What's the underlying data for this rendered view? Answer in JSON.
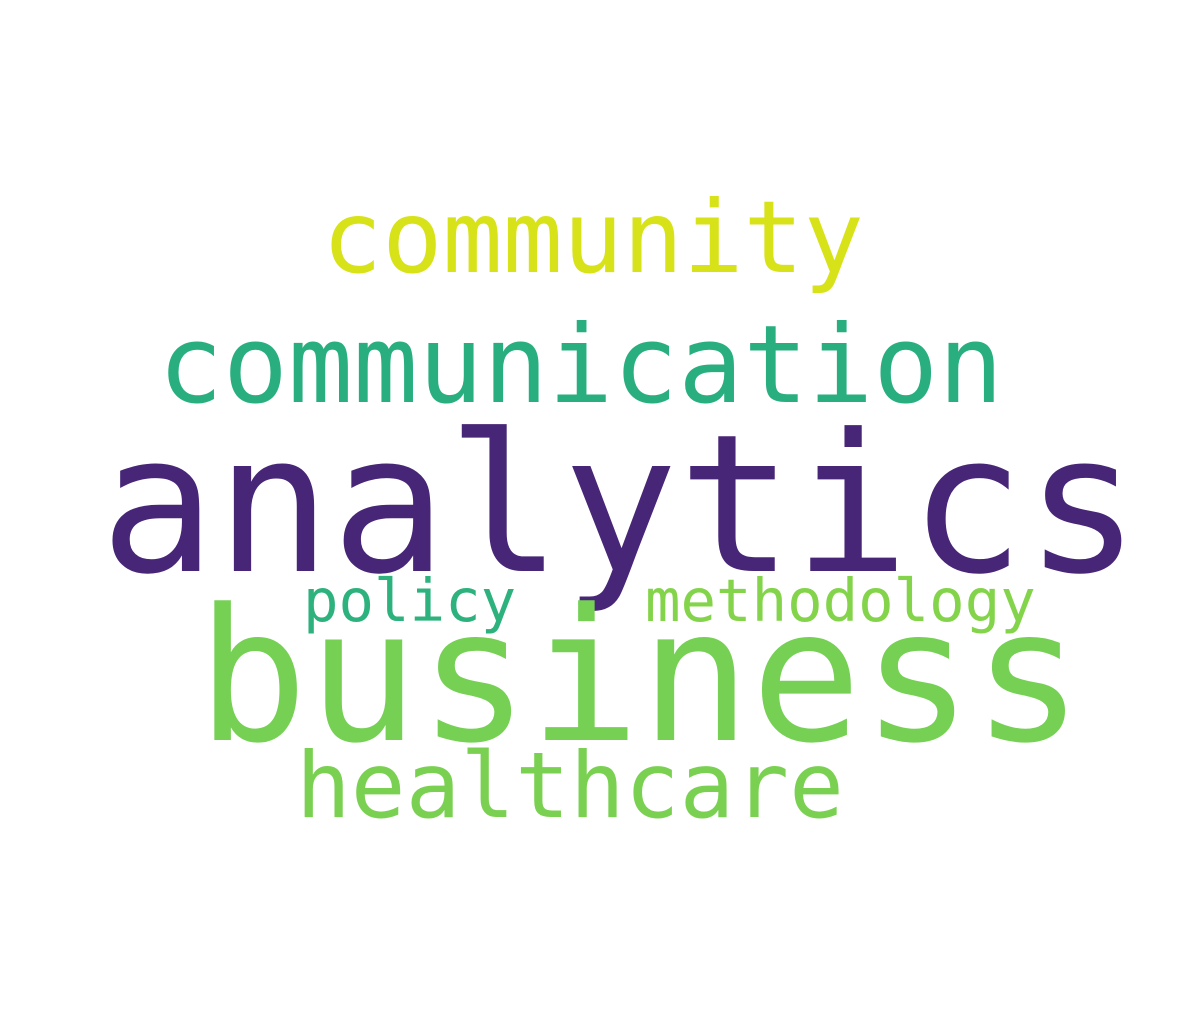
{
  "words": {
    "analytics": {
      "text": "analytics",
      "color": "#482677"
    },
    "business": {
      "text": "business",
      "color": "#75d054"
    },
    "communication": {
      "text": "communication",
      "color": "#29af7f"
    },
    "community": {
      "text": "community",
      "color": "#d8e219"
    },
    "healthcare": {
      "text": "healthcare",
      "color": "#7ad151"
    },
    "policy": {
      "text": "policy",
      "color": "#2db27d"
    },
    "methodology": {
      "text": "methodology",
      "color": "#84d44b"
    }
  }
}
